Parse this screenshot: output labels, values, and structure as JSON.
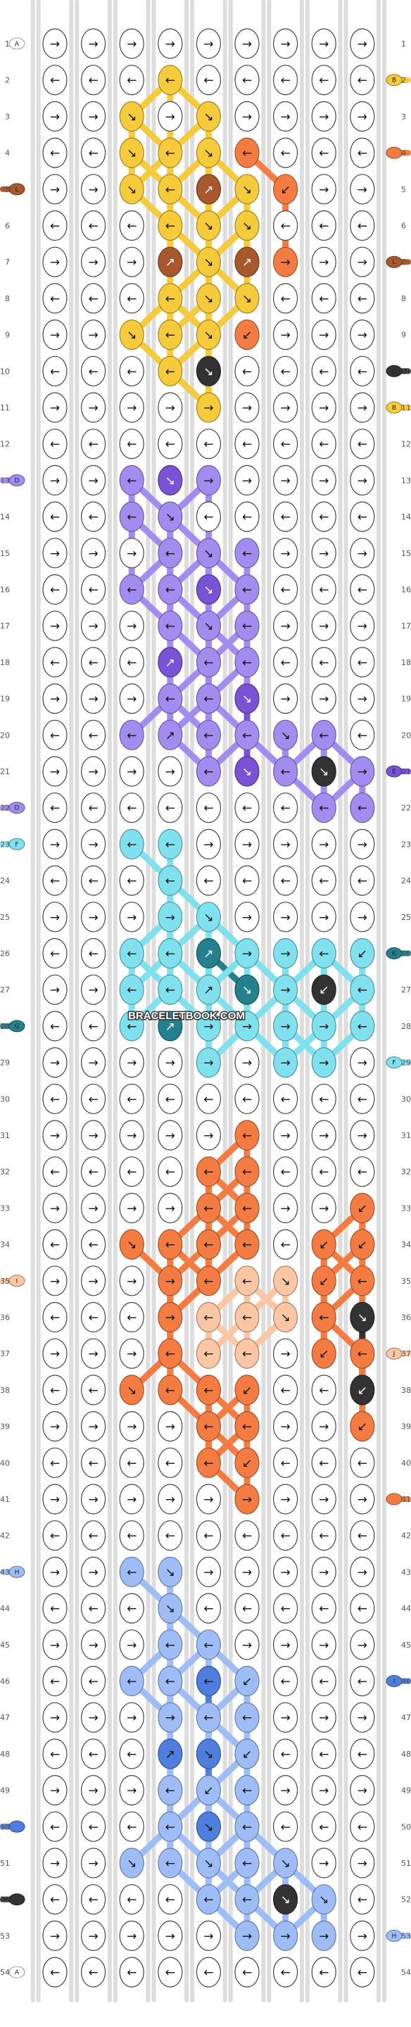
{
  "watermark": "BRACELETBOOK.COM",
  "rows": [
    1,
    2,
    3,
    4,
    5,
    6,
    7,
    8,
    9,
    10,
    11,
    12,
    13,
    14,
    15,
    16,
    17,
    18,
    19,
    20,
    21,
    22,
    23,
    24,
    25,
    26,
    27,
    28,
    29,
    30,
    31,
    32,
    33,
    34,
    35,
    36,
    37,
    38,
    39,
    40,
    41,
    42,
    43,
    44,
    45,
    46,
    47,
    48,
    49,
    50,
    51,
    52,
    53,
    54
  ],
  "colors": {
    "A": "#ffffff",
    "B": "#f5cb3c",
    "C": "#333333",
    "D": "#a38cf0",
    "E": "#7a52d6",
    "F": "#7fe0ee",
    "G": "#25808d",
    "H": "#f47c42",
    "I": "#fac6a3",
    "J": "#9ebdf7",
    "K": "#4f7fde",
    "L": "#a8582c"
  },
  "left_strings": [
    {
      "row": 1,
      "letter": "A",
      "color": "A"
    },
    {
      "row": 5,
      "letter": "L",
      "color": "L"
    },
    {
      "row": 13,
      "letter": "D",
      "color": "D"
    },
    {
      "row": 22,
      "letter": "D",
      "color": "D"
    },
    {
      "row": 23,
      "letter": "F",
      "color": "F"
    },
    {
      "row": 28,
      "letter": "G",
      "color": "G"
    },
    {
      "row": 35,
      "letter": "I",
      "color": "I"
    },
    {
      "row": 43,
      "letter": "H",
      "color": "J"
    },
    {
      "row": 50,
      "letter": "",
      "color": "K"
    },
    {
      "row": 52,
      "letter": "",
      "color": "C"
    },
    {
      "row": 54,
      "letter": "A",
      "color": "A"
    }
  ],
  "right_strings": [
    {
      "row": 2,
      "letter": "B",
      "color": "B"
    },
    {
      "row": 4,
      "letter": "",
      "color": "H"
    },
    {
      "row": 7,
      "letter": "L",
      "color": "L"
    },
    {
      "row": 10,
      "letter": "C",
      "color": "C"
    },
    {
      "row": 11,
      "letter": "B",
      "color": "B"
    },
    {
      "row": 21,
      "letter": "E",
      "color": "E"
    },
    {
      "row": 26,
      "letter": "K",
      "color": "G"
    },
    {
      "row": 29,
      "letter": "F",
      "color": "F"
    },
    {
      "row": 37,
      "letter": "J",
      "color": "I"
    },
    {
      "row": 41,
      "letter": "",
      "color": "H"
    },
    {
      "row": 46,
      "letter": "I",
      "color": "K"
    },
    {
      "row": 53,
      "letter": "H",
      "color": "J"
    }
  ],
  "knots": [
    {
      "row": 2,
      "col": 3,
      "color": "B",
      "dir": "←"
    },
    {
      "row": 3,
      "col": 2,
      "color": "B",
      "dir": "↘"
    },
    {
      "row": 3,
      "col": 4,
      "color": "B",
      "dir": "↘"
    },
    {
      "row": 4,
      "col": 2,
      "color": "B",
      "dir": "↘"
    },
    {
      "row": 4,
      "col": 3,
      "color": "B",
      "dir": "←"
    },
    {
      "row": 4,
      "col": 4,
      "color": "B",
      "dir": "↘"
    },
    {
      "row": 4,
      "col": 5,
      "color": "H",
      "dir": "←"
    },
    {
      "row": 5,
      "col": 2,
      "color": "B",
      "dir": "↘"
    },
    {
      "row": 5,
      "col": 3,
      "color": "B",
      "dir": "←"
    },
    {
      "row": 5,
      "col": 4,
      "color": "L",
      "dir": "↗"
    },
    {
      "row": 5,
      "col": 5,
      "color": "B",
      "dir": "↘"
    },
    {
      "row": 5,
      "col": 6,
      "color": "H",
      "dir": "↙"
    },
    {
      "row": 6,
      "col": 3,
      "color": "B",
      "dir": "←"
    },
    {
      "row": 6,
      "col": 4,
      "color": "B",
      "dir": "↘"
    },
    {
      "row": 6,
      "col": 5,
      "color": "B",
      "dir": "↘"
    },
    {
      "row": 7,
      "col": 3,
      "color": "L",
      "dir": "↗"
    },
    {
      "row": 7,
      "col": 4,
      "color": "B",
      "dir": "↘"
    },
    {
      "row": 7,
      "col": 5,
      "color": "L",
      "dir": "↗"
    },
    {
      "row": 7,
      "col": 6,
      "color": "H",
      "dir": "→"
    },
    {
      "row": 8,
      "col": 3,
      "color": "B",
      "dir": "←"
    },
    {
      "row": 8,
      "col": 4,
      "color": "B",
      "dir": "↘"
    },
    {
      "row": 8,
      "col": 5,
      "color": "B",
      "dir": "↘"
    },
    {
      "row": 9,
      "col": 2,
      "color": "B",
      "dir": "↘"
    },
    {
      "row": 9,
      "col": 3,
      "color": "B",
      "dir": "←"
    },
    {
      "row": 9,
      "col": 4,
      "color": "B",
      "dir": "↘"
    },
    {
      "row": 9,
      "col": 5,
      "color": "H",
      "dir": "↙"
    },
    {
      "row": 10,
      "col": 3,
      "color": "B",
      "dir": "←"
    },
    {
      "row": 10,
      "col": 4,
      "color": "C",
      "dir": "↘"
    },
    {
      "row": 11,
      "col": 4,
      "color": "B",
      "dir": "→"
    },
    {
      "row": 13,
      "col": 2,
      "color": "D",
      "dir": "←"
    },
    {
      "row": 13,
      "col": 3,
      "color": "E",
      "dir": "↘"
    },
    {
      "row": 13,
      "col": 4,
      "color": "D",
      "dir": "→"
    },
    {
      "row": 14,
      "col": 2,
      "color": "D",
      "dir": "←"
    },
    {
      "row": 14,
      "col": 3,
      "color": "D",
      "dir": "↘"
    },
    {
      "row": 15,
      "col": 3,
      "color": "D",
      "dir": "←"
    },
    {
      "row": 15,
      "col": 4,
      "color": "D",
      "dir": "↘"
    },
    {
      "row": 15,
      "col": 5,
      "color": "D",
      "dir": "←"
    },
    {
      "row": 16,
      "col": 2,
      "color": "D",
      "dir": "←"
    },
    {
      "row": 16,
      "col": 3,
      "color": "D",
      "dir": "←"
    },
    {
      "row": 16,
      "col": 4,
      "color": "E",
      "dir": "↘"
    },
    {
      "row": 16,
      "col": 5,
      "color": "D",
      "dir": "←"
    },
    {
      "row": 17,
      "col": 3,
      "color": "D",
      "dir": "←"
    },
    {
      "row": 17,
      "col": 4,
      "color": "D",
      "dir": "↘"
    },
    {
      "row": 17,
      "col": 5,
      "color": "D",
      "dir": "←"
    },
    {
      "row": 18,
      "col": 3,
      "color": "E",
      "dir": "↗"
    },
    {
      "row": 18,
      "col": 4,
      "color": "D",
      "dir": "←"
    },
    {
      "row": 18,
      "col": 5,
      "color": "D",
      "dir": "←"
    },
    {
      "row": 19,
      "col": 3,
      "color": "D",
      "dir": "←"
    },
    {
      "row": 19,
      "col": 4,
      "color": "D",
      "dir": "←"
    },
    {
      "row": 19,
      "col": 5,
      "color": "E",
      "dir": "↘"
    },
    {
      "row": 20,
      "col": 2,
      "color": "D",
      "dir": "←"
    },
    {
      "row": 20,
      "col": 3,
      "color": "D",
      "dir": "↗"
    },
    {
      "row": 20,
      "col": 4,
      "color": "D",
      "dir": "←"
    },
    {
      "row": 20,
      "col": 5,
      "color": "D",
      "dir": "←"
    },
    {
      "row": 20,
      "col": 6,
      "color": "D",
      "dir": "↘"
    },
    {
      "row": 20,
      "col": 7,
      "color": "D",
      "dir": "←"
    },
    {
      "row": 21,
      "col": 4,
      "color": "D",
      "dir": "←"
    },
    {
      "row": 21,
      "col": 5,
      "color": "E",
      "dir": "↘"
    },
    {
      "row": 21,
      "col": 6,
      "color": "D",
      "dir": "←"
    },
    {
      "row": 21,
      "col": 7,
      "color": "C",
      "dir": "↘"
    },
    {
      "row": 21,
      "col": 8,
      "color": "D",
      "dir": "→"
    },
    {
      "row": 22,
      "col": 7,
      "color": "D",
      "dir": "←"
    },
    {
      "row": 22,
      "col": 8,
      "color": "D",
      "dir": "←"
    },
    {
      "row": 23,
      "col": 2,
      "color": "F",
      "dir": "←"
    },
    {
      "row": 23,
      "col": 3,
      "color": "F",
      "dir": "←"
    },
    {
      "row": 24,
      "col": 3,
      "color": "F",
      "dir": "←"
    },
    {
      "row": 25,
      "col": 3,
      "color": "F",
      "dir": "→"
    },
    {
      "row": 25,
      "col": 4,
      "color": "F",
      "dir": "↘"
    },
    {
      "row": 26,
      "col": 2,
      "color": "F",
      "dir": "←"
    },
    {
      "row": 26,
      "col": 3,
      "color": "F",
      "dir": "←"
    },
    {
      "row": 26,
      "col": 4,
      "color": "G",
      "dir": "↗"
    },
    {
      "row": 26,
      "col": 5,
      "color": "F",
      "dir": "→"
    },
    {
      "row": 26,
      "col": 6,
      "color": "F",
      "dir": "→"
    },
    {
      "row": 26,
      "col": 7,
      "color": "F",
      "dir": "←"
    },
    {
      "row": 26,
      "col": 8,
      "color": "F",
      "dir": "↙"
    },
    {
      "row": 27,
      "col": 2,
      "color": "F",
      "dir": "←"
    },
    {
      "row": 27,
      "col": 3,
      "color": "F",
      "dir": "←"
    },
    {
      "row": 27,
      "col": 4,
      "color": "F",
      "dir": "↗"
    },
    {
      "row": 27,
      "col": 5,
      "color": "G",
      "dir": "↘"
    },
    {
      "row": 27,
      "col": 6,
      "color": "F",
      "dir": "→"
    },
    {
      "row": 27,
      "col": 7,
      "color": "C",
      "dir": "↙"
    },
    {
      "row": 27,
      "col": 8,
      "color": "F",
      "dir": "←"
    },
    {
      "row": 28,
      "col": 2,
      "color": "F",
      "dir": "←"
    },
    {
      "row": 28,
      "col": 3,
      "color": "G",
      "dir": "↗"
    },
    {
      "row": 28,
      "col": 4,
      "color": "F",
      "dir": "→"
    },
    {
      "row": 28,
      "col": 5,
      "color": "F",
      "dir": "→"
    },
    {
      "row": 28,
      "col": 6,
      "color": "F",
      "dir": "→"
    },
    {
      "row": 28,
      "col": 7,
      "color": "F",
      "dir": "→"
    },
    {
      "row": 28,
      "col": 8,
      "color": "F",
      "dir": "←"
    },
    {
      "row": 29,
      "col": 4,
      "color": "F",
      "dir": "→"
    },
    {
      "row": 29,
      "col": 6,
      "color": "F",
      "dir": "→"
    },
    {
      "row": 29,
      "col": 7,
      "color": "F",
      "dir": "→"
    },
    {
      "row": 31,
      "col": 5,
      "color": "H",
      "dir": "←"
    },
    {
      "row": 32,
      "col": 4,
      "color": "H",
      "dir": "←"
    },
    {
      "row": 32,
      "col": 5,
      "color": "H",
      "dir": "←"
    },
    {
      "row": 33,
      "col": 4,
      "color": "H",
      "dir": "←"
    },
    {
      "row": 33,
      "col": 5,
      "color": "H",
      "dir": "←"
    },
    {
      "row": 33,
      "col": 8,
      "color": "H",
      "dir": "↙"
    },
    {
      "row": 34,
      "col": 2,
      "color": "H",
      "dir": "↘"
    },
    {
      "row": 34,
      "col": 3,
      "color": "H",
      "dir": "←"
    },
    {
      "row": 34,
      "col": 4,
      "color": "H",
      "dir": "←"
    },
    {
      "row": 34,
      "col": 5,
      "color": "H",
      "dir": "←"
    },
    {
      "row": 34,
      "col": 7,
      "color": "H",
      "dir": "↙"
    },
    {
      "row": 34,
      "col": 8,
      "color": "H",
      "dir": "↙"
    },
    {
      "row": 35,
      "col": 3,
      "color": "H",
      "dir": "→"
    },
    {
      "row": 35,
      "col": 4,
      "color": "H",
      "dir": "←"
    },
    {
      "row": 35,
      "col": 5,
      "color": "I",
      "dir": "←"
    },
    {
      "row": 35,
      "col": 6,
      "color": "I",
      "dir": "↘"
    },
    {
      "row": 35,
      "col": 7,
      "color": "H",
      "dir": "↙"
    },
    {
      "row": 35,
      "col": 8,
      "color": "H",
      "dir": "←"
    },
    {
      "row": 36,
      "col": 3,
      "color": "H",
      "dir": "→"
    },
    {
      "row": 36,
      "col": 4,
      "color": "I",
      "dir": "←"
    },
    {
      "row": 36,
      "col": 5,
      "color": "I",
      "dir": "←"
    },
    {
      "row": 36,
      "col": 6,
      "color": "I",
      "dir": "↘"
    },
    {
      "row": 36,
      "col": 7,
      "color": "H",
      "dir": "←"
    },
    {
      "row": 36,
      "col": 8,
      "color": "C",
      "dir": "↘"
    },
    {
      "row": 37,
      "col": 3,
      "color": "H",
      "dir": "←"
    },
    {
      "row": 37,
      "col": 4,
      "color": "I",
      "dir": "←"
    },
    {
      "row": 37,
      "col": 5,
      "color": "I",
      "dir": "←"
    },
    {
      "row": 37,
      "col": 7,
      "color": "H",
      "dir": "↙"
    },
    {
      "row": 37,
      "col": 8,
      "color": "H",
      "dir": "←"
    },
    {
      "row": 38,
      "col": 2,
      "color": "H",
      "dir": "↘"
    },
    {
      "row": 38,
      "col": 3,
      "color": "H",
      "dir": "←"
    },
    {
      "row": 38,
      "col": 4,
      "color": "H",
      "dir": "←"
    },
    {
      "row": 38,
      "col": 5,
      "color": "H",
      "dir": "↙"
    },
    {
      "row": 38,
      "col": 8,
      "color": "C",
      "dir": "↙"
    },
    {
      "row": 39,
      "col": 4,
      "color": "H",
      "dir": "←"
    },
    {
      "row": 39,
      "col": 5,
      "color": "H",
      "dir": "←"
    },
    {
      "row": 39,
      "col": 8,
      "color": "H",
      "dir": "↙"
    },
    {
      "row": 40,
      "col": 4,
      "color": "H",
      "dir": "←"
    },
    {
      "row": 40,
      "col": 5,
      "color": "H",
      "dir": "↙"
    },
    {
      "row": 41,
      "col": 5,
      "color": "H",
      "dir": "→"
    },
    {
      "row": 43,
      "col": 2,
      "color": "J",
      "dir": "←"
    },
    {
      "row": 43,
      "col": 3,
      "color": "J",
      "dir": "↘"
    },
    {
      "row": 44,
      "col": 3,
      "color": "J",
      "dir": "↘"
    },
    {
      "row": 45,
      "col": 3,
      "color": "J",
      "dir": "←"
    },
    {
      "row": 45,
      "col": 4,
      "color": "J",
      "dir": "←"
    },
    {
      "row": 46,
      "col": 2,
      "color": "J",
      "dir": "←"
    },
    {
      "row": 46,
      "col": 3,
      "color": "J",
      "dir": "←"
    },
    {
      "row": 46,
      "col": 4,
      "color": "K",
      "dir": "←"
    },
    {
      "row": 46,
      "col": 5,
      "color": "J",
      "dir": "↙"
    },
    {
      "row": 47,
      "col": 3,
      "color": "J",
      "dir": "→"
    },
    {
      "row": 47,
      "col": 4,
      "color": "J",
      "dir": "←"
    },
    {
      "row": 47,
      "col": 5,
      "color": "J",
      "dir": "←"
    },
    {
      "row": 48,
      "col": 3,
      "color": "K",
      "dir": "↗"
    },
    {
      "row": 48,
      "col": 4,
      "color": "K",
      "dir": "↘"
    },
    {
      "row": 48,
      "col": 5,
      "color": "J",
      "dir": "↙"
    },
    {
      "row": 49,
      "col": 3,
      "color": "J",
      "dir": "←"
    },
    {
      "row": 49,
      "col": 4,
      "color": "J",
      "dir": "↙"
    },
    {
      "row": 49,
      "col": 5,
      "color": "J",
      "dir": "←"
    },
    {
      "row": 50,
      "col": 3,
      "color": "J",
      "dir": "←"
    },
    {
      "row": 50,
      "col": 4,
      "color": "K",
      "dir": "↘"
    },
    {
      "row": 50,
      "col": 5,
      "color": "J",
      "dir": "←"
    },
    {
      "row": 51,
      "col": 2,
      "color": "J",
      "dir": "↘"
    },
    {
      "row": 51,
      "col": 3,
      "color": "J",
      "dir": "←"
    },
    {
      "row": 51,
      "col": 4,
      "color": "J",
      "dir": "↘"
    },
    {
      "row": 51,
      "col": 5,
      "color": "J",
      "dir": "←"
    },
    {
      "row": 51,
      "col": 6,
      "color": "J",
      "dir": "↘"
    },
    {
      "row": 52,
      "col": 4,
      "color": "J",
      "dir": "←"
    },
    {
      "row": 52,
      "col": 5,
      "color": "J",
      "dir": "←"
    },
    {
      "row": 52,
      "col": 6,
      "color": "C",
      "dir": "↘"
    },
    {
      "row": 52,
      "col": 7,
      "color": "J",
      "dir": "↘"
    },
    {
      "row": 53,
      "col": 5,
      "color": "J",
      "dir": "→"
    },
    {
      "row": 53,
      "col": 6,
      "color": "J",
      "dir": "→"
    },
    {
      "row": 53,
      "col": 7,
      "color": "J",
      "dir": "→"
    }
  ]
}
